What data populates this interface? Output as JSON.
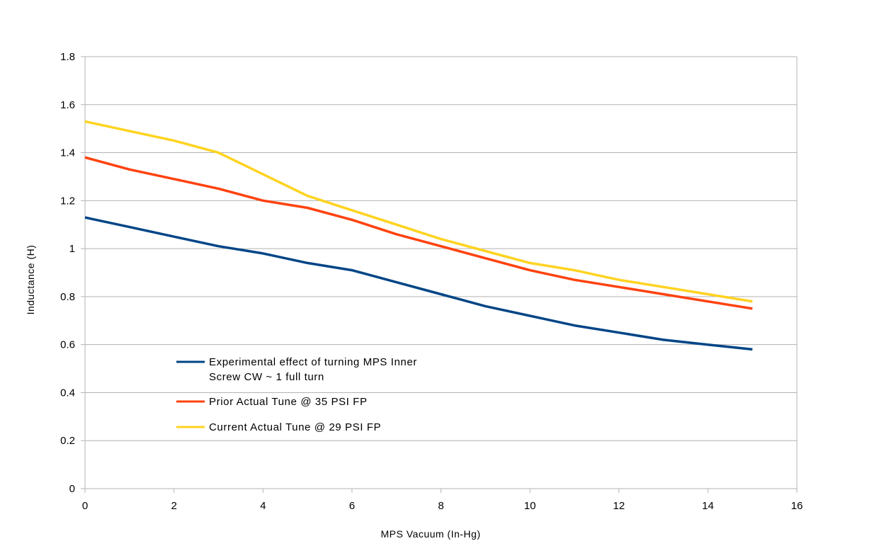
{
  "chart_data": {
    "type": "line",
    "title": "",
    "xlabel": "MPS Vacuum (In-Hg)",
    "ylabel": "Inductance (H)",
    "xlim": [
      0,
      16
    ],
    "ylim": [
      0,
      1.8
    ],
    "xticks": [
      "0",
      "2",
      "4",
      "6",
      "8",
      "10",
      "12",
      "14",
      "16"
    ],
    "yticks": [
      "0",
      "0.2",
      "0.4",
      "0.6",
      "0.8",
      "1",
      "1.2",
      "1.4",
      "1.6",
      "1.8"
    ],
    "grid": "horizontal",
    "legend_position": "lower-left",
    "x": [
      0,
      1,
      2,
      3,
      4,
      5,
      6,
      7,
      8,
      9,
      10,
      11,
      12,
      13,
      14,
      15
    ],
    "series": [
      {
        "name_lines": [
          "Experimental effect of turning MPS Inner",
          "Screw CW ~ 1 full turn"
        ],
        "color": "#004586",
        "values": [
          1.13,
          1.09,
          1.05,
          1.01,
          0.98,
          0.94,
          0.91,
          0.86,
          0.81,
          0.76,
          0.72,
          0.68,
          0.65,
          0.62,
          0.6,
          0.58
        ]
      },
      {
        "name_lines": [
          "Prior Actual Tune @ 35 PSI FP"
        ],
        "color": "#ff420e",
        "values": [
          1.38,
          1.33,
          1.29,
          1.25,
          1.2,
          1.17,
          1.12,
          1.06,
          1.01,
          0.96,
          0.91,
          0.87,
          0.84,
          0.81,
          0.78,
          0.75
        ]
      },
      {
        "name_lines": [
          "Current Actual Tune @ 29 PSI FP"
        ],
        "color": "#ffd320",
        "values": [
          1.53,
          1.49,
          1.45,
          1.4,
          1.31,
          1.22,
          1.16,
          1.1,
          1.04,
          0.99,
          0.94,
          0.91,
          0.87,
          0.84,
          0.81,
          0.78
        ]
      }
    ],
    "colors": {
      "grid": "#b3b3b3",
      "axis": "#b3b3b3"
    }
  }
}
